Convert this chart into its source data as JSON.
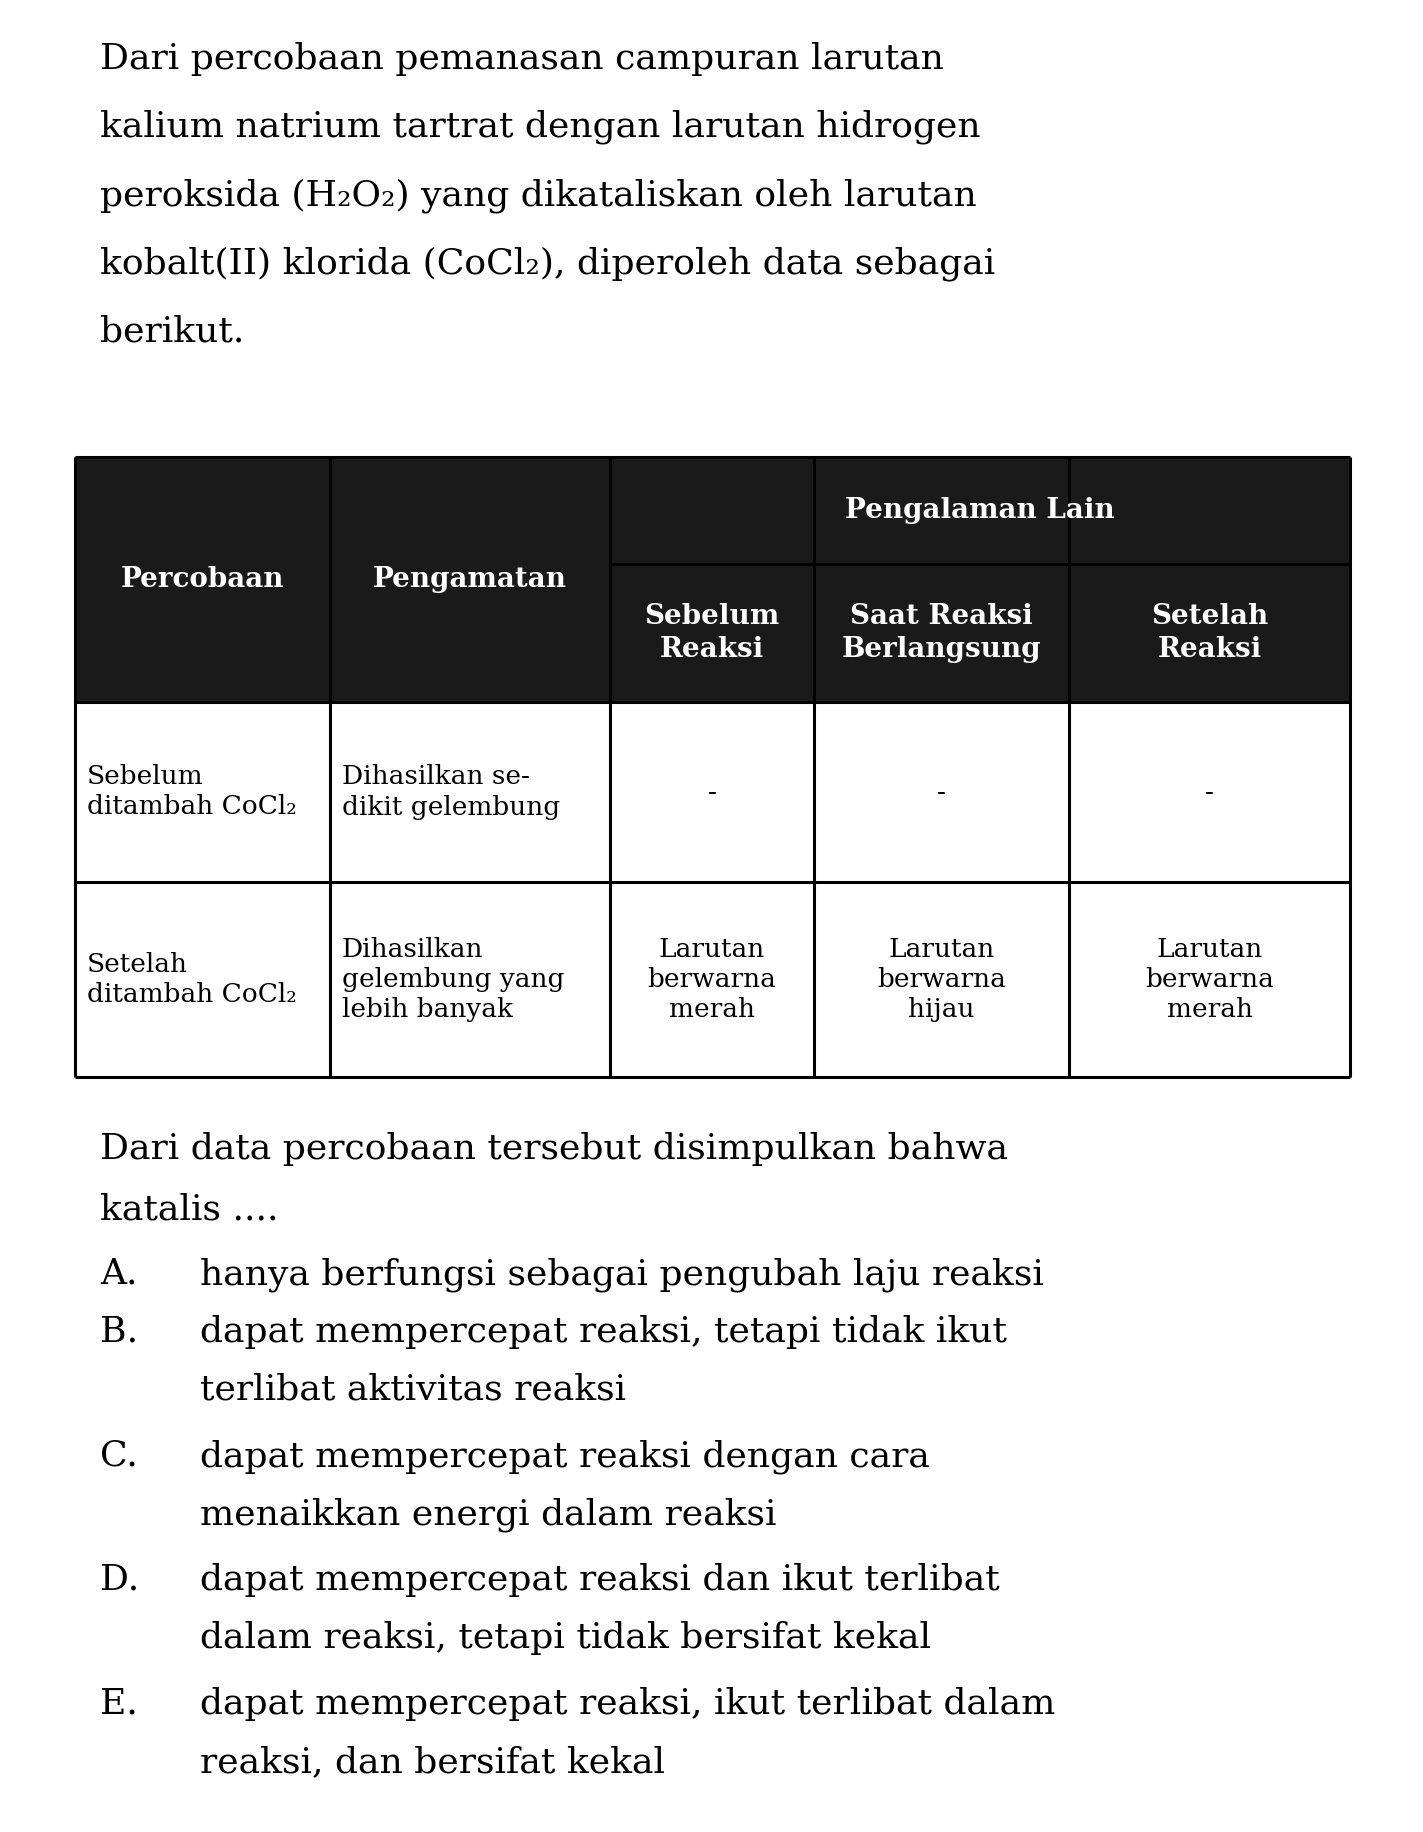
{
  "bg_color": "#ffffff",
  "text_color": "#000000",
  "table_header_bg": "#1a1a1a",
  "table_header_text": "#ffffff",
  "table_row_bg": "#ffffff",
  "table_border_color": "#000000",
  "intro_lines": [
    "Dari percobaan pemanasan campuran larutan",
    "kalium natrium tartrat dengan larutan hidrogen",
    "peroksida (H₂O₂) yang dikataliskan oleh larutan",
    "kobalt(II) klorida (CoCl₂), diperoleh data sebagai",
    "berikut."
  ],
  "row1_col1": "Sebelum\nditambah CoCl₂",
  "row1_col2": "Dihasilkan se-\ndikit gelembung",
  "row1_col3": "-",
  "row1_col4": "-",
  "row1_col5": "-",
  "row2_col1": "Setelah\nditambah CoCl₂",
  "row2_col2": "Dihasilkan\ngelembung yang\nlebih banyak",
  "row2_col3": "Larutan\nberwarna\nmerah",
  "row2_col4": "Larutan\nberwarna\nhijau",
  "row2_col5": "Larutan\nberwarna\nmerah",
  "conclusion_lines": [
    "Dari data percobaan tersebut disimpulkan bahwa",
    "katalis ...."
  ],
  "options_lines": [
    [
      "A.",
      "hanya berfungsi sebagai pengubah laju reaksi"
    ],
    [
      "B.",
      "dapat mempercepat reaksi, tetapi tidak ikut"
    ],
    [
      "",
      "terlibat aktivitas reaksi"
    ],
    [
      "C.",
      "dapat mempercepat reaksi dengan cara"
    ],
    [
      "",
      "menaikkan energi dalam reaksi"
    ],
    [
      "D.",
      "dapat mempercepat reaksi dan ikut terlibat"
    ],
    [
      "",
      "dalam reaksi, tetapi tidak bersifat kekal"
    ],
    [
      "E.",
      "dapat mempercepat reaksi, ikut terlibat dalam"
    ],
    [
      "",
      "reaksi, dan bersifat kekal"
    ]
  ],
  "font_family": "DejaVu Serif",
  "intro_fontsize": 26,
  "table_header_fontsize": 20,
  "table_body_fontsize": 19,
  "conclusion_fontsize": 26,
  "options_label_fontsize": 26,
  "options_text_fontsize": 26
}
